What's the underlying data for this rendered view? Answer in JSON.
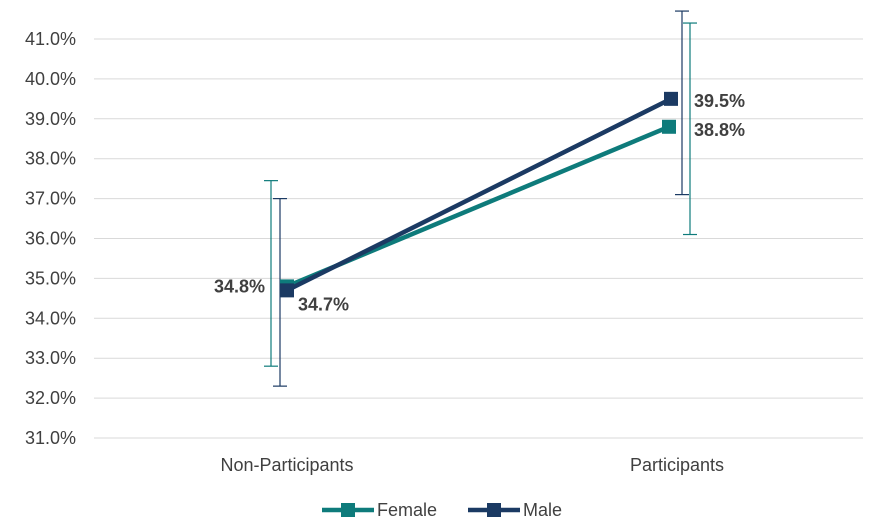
{
  "chart_data": {
    "type": "line",
    "categories": [
      "Non-Participants",
      "Participants"
    ],
    "series": [
      {
        "name": "Female",
        "values": [
          34.8,
          38.8
        ],
        "error_low": [
          32.8,
          36.1
        ],
        "error_high": [
          37.45,
          41.4
        ],
        "labels": [
          "34.8%",
          "38.8%"
        ],
        "color": "#0e7b7b"
      },
      {
        "name": "Male",
        "values": [
          34.7,
          39.5
        ],
        "error_low": [
          32.3,
          37.1
        ],
        "error_high": [
          37.0,
          41.7
        ],
        "labels": [
          "34.7%",
          "39.5%"
        ],
        "color": "#1b3a63"
      }
    ],
    "ylim": [
      31.0,
      41.0
    ],
    "yticks": [
      "31.0%",
      "32.0%",
      "33.0%",
      "34.0%",
      "35.0%",
      "36.0%",
      "37.0%",
      "38.0%",
      "39.0%",
      "40.0%",
      "41.0%"
    ],
    "grid": true,
    "legend_position": "bottom",
    "title": "",
    "xlabel": "",
    "ylabel": ""
  }
}
